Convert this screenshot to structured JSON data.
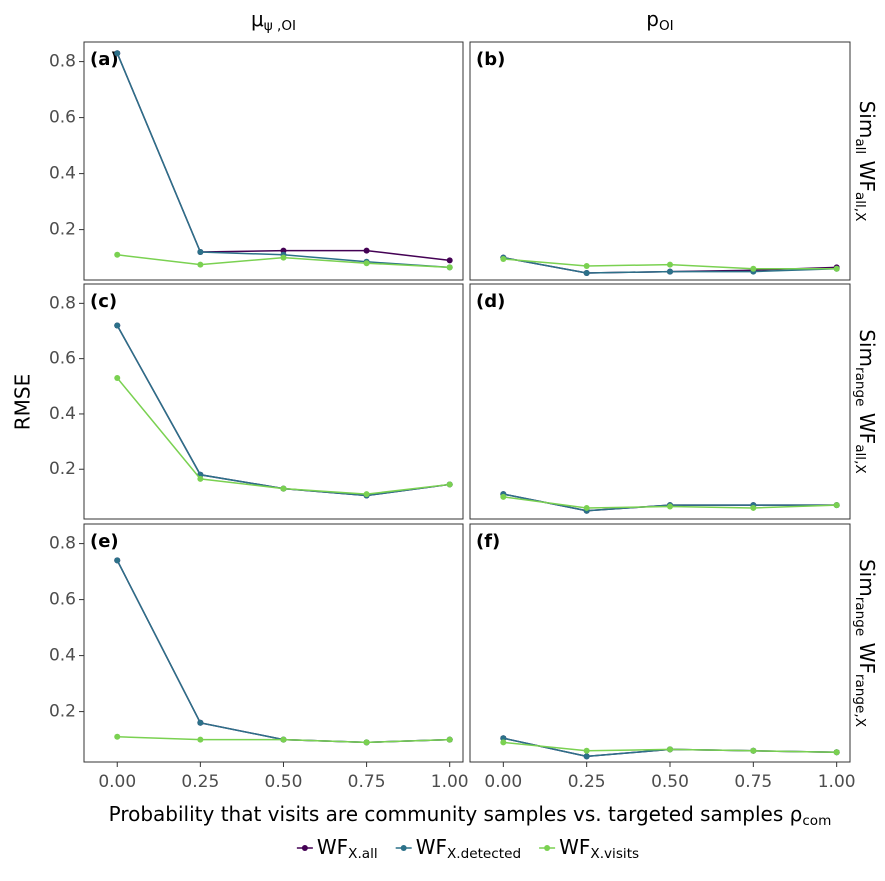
{
  "column_titles": [
    [
      [
        "μ",
        "ψ ,OI"
      ]
    ],
    [
      [
        "p",
        "OI"
      ]
    ]
  ],
  "row_titles": [
    [
      [
        "Sim",
        "all"
      ],
      [
        " WF",
        "all,X"
      ]
    ],
    [
      [
        "Sim",
        "range"
      ],
      [
        " WF",
        "all,X"
      ]
    ],
    [
      [
        "Sim",
        "range"
      ],
      [
        " WF",
        "range,X"
      ]
    ]
  ],
  "y_label": "RMSE",
  "x_label": [
    [
      "Probability that visits are community samples vs. targeted samples ρ",
      "com"
    ]
  ],
  "chart_data": [
    {
      "type": "line",
      "label": "(a)",
      "x": [
        0,
        0.25,
        0.5,
        0.75,
        1
      ],
      "xlim": [
        -0.1,
        1.04
      ],
      "ylim": [
        0.02,
        0.87
      ],
      "yticks": [
        0.2,
        0.4,
        0.6,
        0.8
      ],
      "series": [
        {
          "name": [
            [
              "WF",
              "X.all"
            ]
          ],
          "color": "#440154",
          "values": [
            0.83,
            0.12,
            0.125,
            0.125,
            0.09
          ]
        },
        {
          "name": [
            [
              "WF",
              "X.detected"
            ]
          ],
          "color": "#2c7189",
          "values": [
            0.83,
            0.12,
            0.11,
            0.085,
            0.065
          ]
        },
        {
          "name": [
            [
              "WF",
              "X.visits"
            ]
          ],
          "color": "#7ad151",
          "values": [
            0.11,
            0.075,
            0.1,
            0.08,
            0.065
          ]
        }
      ]
    },
    {
      "type": "line",
      "label": "(b)",
      "x": [
        0,
        0.25,
        0.5,
        0.75,
        1
      ],
      "xlim": [
        -0.1,
        1.04
      ],
      "ylim": [
        0.02,
        0.87
      ],
      "series": [
        {
          "name": [
            [
              "WF",
              "X.all"
            ]
          ],
          "color": "#440154",
          "values": [
            0.1,
            0.045,
            0.05,
            0.055,
            0.065
          ]
        },
        {
          "name": [
            [
              "WF",
              "X.detected"
            ]
          ],
          "color": "#2c7189",
          "values": [
            0.1,
            0.045,
            0.05,
            0.05,
            0.06
          ]
        },
        {
          "name": [
            [
              "WF",
              "X.visits"
            ]
          ],
          "color": "#7ad151",
          "values": [
            0.095,
            0.07,
            0.075,
            0.06,
            0.06
          ]
        }
      ]
    },
    {
      "type": "line",
      "label": "(c)",
      "x": [
        0,
        0.25,
        0.5,
        0.75,
        1
      ],
      "xlim": [
        -0.1,
        1.04
      ],
      "ylim": [
        0.02,
        0.87
      ],
      "yticks": [
        0.2,
        0.4,
        0.6,
        0.8
      ],
      "series": [
        {
          "name": [
            [
              "WF",
              "X.all"
            ]
          ],
          "color": "#440154",
          "values": [
            0.72,
            0.18,
            0.13,
            0.105,
            0.145
          ]
        },
        {
          "name": [
            [
              "WF",
              "X.detected"
            ]
          ],
          "color": "#2c7189",
          "values": [
            0.72,
            0.18,
            0.13,
            0.105,
            0.145
          ]
        },
        {
          "name": [
            [
              "WF",
              "X.visits"
            ]
          ],
          "color": "#7ad151",
          "values": [
            0.53,
            0.165,
            0.13,
            0.11,
            0.145
          ]
        }
      ]
    },
    {
      "type": "line",
      "label": "(d)",
      "x": [
        0,
        0.25,
        0.5,
        0.75,
        1
      ],
      "xlim": [
        -0.1,
        1.04
      ],
      "ylim": [
        0.02,
        0.87
      ],
      "series": [
        {
          "name": [
            [
              "WF",
              "X.all"
            ]
          ],
          "color": "#440154",
          "values": [
            0.11,
            0.05,
            0.07,
            0.07,
            0.07
          ]
        },
        {
          "name": [
            [
              "WF",
              "X.detected"
            ]
          ],
          "color": "#2c7189",
          "values": [
            0.11,
            0.05,
            0.07,
            0.07,
            0.07
          ]
        },
        {
          "name": [
            [
              "WF",
              "X.visits"
            ]
          ],
          "color": "#7ad151",
          "values": [
            0.1,
            0.06,
            0.065,
            0.06,
            0.07
          ]
        }
      ]
    },
    {
      "type": "line",
      "label": "(e)",
      "x": [
        0,
        0.25,
        0.5,
        0.75,
        1
      ],
      "xlim": [
        -0.1,
        1.04
      ],
      "ylim": [
        0.02,
        0.87
      ],
      "yticks": [
        0.2,
        0.4,
        0.6,
        0.8
      ],
      "xticks": [
        {
          "value": 0,
          "label": "0.00"
        },
        {
          "value": 0.25,
          "label": "0.25"
        },
        {
          "value": 0.5,
          "label": "0.50"
        },
        {
          "value": 0.75,
          "label": "0.75"
        },
        {
          "value": 1,
          "label": "1.00"
        }
      ],
      "series": [
        {
          "name": [
            [
              "WF",
              "X.all"
            ]
          ],
          "color": "#440154",
          "values": [
            0.74,
            0.16,
            0.1,
            0.09,
            0.1
          ]
        },
        {
          "name": [
            [
              "WF",
              "X.detected"
            ]
          ],
          "color": "#2c7189",
          "values": [
            0.74,
            0.16,
            0.1,
            0.09,
            0.1
          ]
        },
        {
          "name": [
            [
              "WF",
              "X.visits"
            ]
          ],
          "color": "#7ad151",
          "values": [
            0.11,
            0.1,
            0.1,
            0.09,
            0.1
          ]
        }
      ]
    },
    {
      "type": "line",
      "label": "(f)",
      "x": [
        0,
        0.25,
        0.5,
        0.75,
        1
      ],
      "xlim": [
        -0.1,
        1.04
      ],
      "ylim": [
        0.02,
        0.87
      ],
      "xticks": [
        {
          "value": 0,
          "label": "0.00"
        },
        {
          "value": 0.25,
          "label": "0.25"
        },
        {
          "value": 0.5,
          "label": "0.50"
        },
        {
          "value": 0.75,
          "label": "0.75"
        },
        {
          "value": 1,
          "label": "1.00"
        }
      ],
      "series": [
        {
          "name": [
            [
              "WF",
              "X.all"
            ]
          ],
          "color": "#440154",
          "values": [
            0.105,
            0.04,
            0.065,
            0.06,
            0.055
          ]
        },
        {
          "name": [
            [
              "WF",
              "X.detected"
            ]
          ],
          "color": "#2c7189",
          "values": [
            0.105,
            0.04,
            0.065,
            0.06,
            0.055
          ]
        },
        {
          "name": [
            [
              "WF",
              "X.visits"
            ]
          ],
          "color": "#7ad151",
          "values": [
            0.09,
            0.06,
            0.065,
            0.06,
            0.055
          ]
        }
      ]
    }
  ]
}
